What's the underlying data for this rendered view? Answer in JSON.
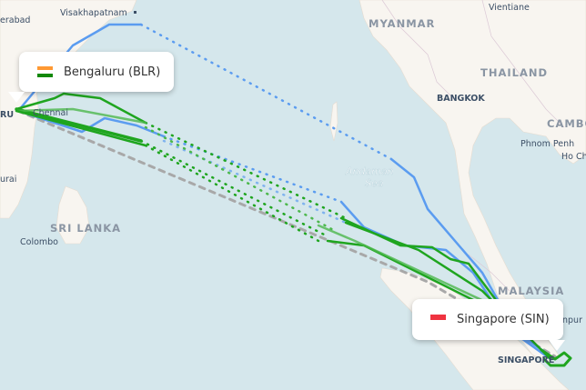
{
  "origin": {
    "label": "Bengaluru (BLR)",
    "flag": "india-flag-icon"
  },
  "destination": {
    "label": "Singapore (SIN)",
    "flag": "singapore-flag-icon"
  },
  "map_labels": {
    "visakhapatnam": "Visakhapatnam",
    "hyderabad": "erabad",
    "myanmar": "MYANMAR",
    "vientiane": "Vientiane",
    "thailand": "THAILAND",
    "bangkok": "BANGKOK",
    "cambodia": "CAMBO",
    "phnom_penh": "Phnom Penh",
    "ho_chi_minh": "Ho Ch",
    "andaman_sea_1": "Andaman",
    "andaman_sea_2": "Sea",
    "sri_lanka": "SRI LANKA",
    "colombo": "Colombo",
    "madurai": "urai",
    "bengaluru": "RU",
    "chennai": "Chennai",
    "malaysia": "MALAYSIA",
    "kuala_lumpur": "npur",
    "singapore": "SINGAPORE"
  },
  "colors": {
    "sea": "#d5e7ec",
    "land": "#f8f5f0",
    "route_green": "#1fa51f",
    "route_blue": "#5b9cf0",
    "great_circle": "#a8a8a8"
  }
}
